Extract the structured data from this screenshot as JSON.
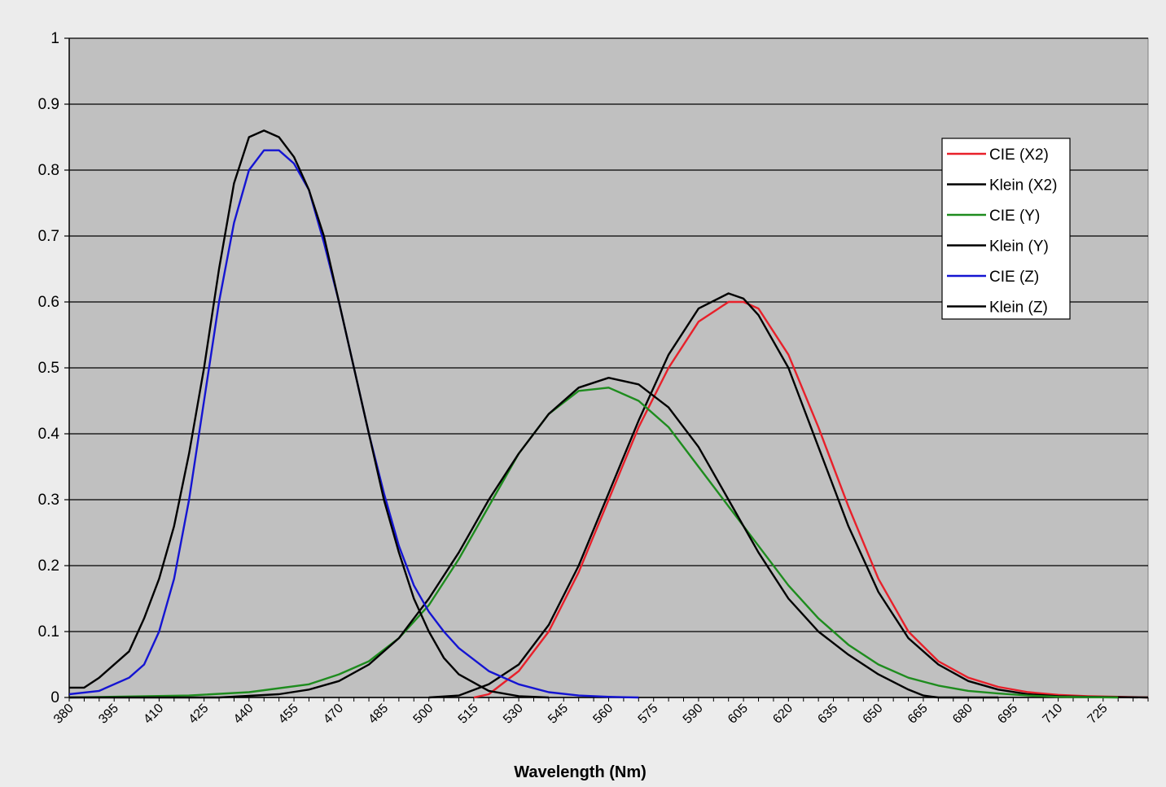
{
  "chart_data": {
    "type": "line",
    "title": "",
    "xlabel": "Wavelength (Nm)",
    "ylabel": "",
    "xlim": [
      380,
      740
    ],
    "ylim": [
      0,
      1
    ],
    "grid": "horizontal",
    "legend_position": "top-right",
    "plot_background": "#c0c0c0",
    "x_ticks": [
      "380",
      "395",
      "410",
      "425",
      "440",
      "455",
      "470",
      "485",
      "500",
      "515",
      "530",
      "545",
      "560",
      "575",
      "590",
      "605",
      "620",
      "635",
      "650",
      "665",
      "680",
      "695",
      "710",
      "725"
    ],
    "y_ticks": [
      "0",
      "0.1",
      "0.2",
      "0.3",
      "0.4",
      "0.5",
      "0.6",
      "0.7",
      "0.8",
      "0.9",
      "1"
    ],
    "series": [
      {
        "name": "CIE (X2)",
        "color": "#e8202a",
        "x": [
          515,
          520,
          530,
          540,
          550,
          560,
          570,
          580,
          590,
          600,
          605,
          610,
          620,
          630,
          640,
          650,
          660,
          670,
          680,
          690,
          700,
          710,
          720,
          730,
          740
        ],
        "y": [
          0,
          0.005,
          0.04,
          0.1,
          0.19,
          0.3,
          0.41,
          0.5,
          0.57,
          0.6,
          0.6,
          0.59,
          0.52,
          0.41,
          0.29,
          0.18,
          0.1,
          0.055,
          0.03,
          0.016,
          0.008,
          0.004,
          0.002,
          0.001,
          0
        ]
      },
      {
        "name": "Klein (X2)",
        "color": "#000000",
        "x": [
          500,
          510,
          520,
          530,
          540,
          550,
          560,
          570,
          580,
          590,
          600,
          605,
          610,
          620,
          630,
          640,
          650,
          660,
          670,
          680,
          690,
          700,
          710,
          720,
          740
        ],
        "y": [
          0,
          0.003,
          0.02,
          0.05,
          0.11,
          0.2,
          0.31,
          0.42,
          0.52,
          0.59,
          0.613,
          0.605,
          0.58,
          0.5,
          0.38,
          0.26,
          0.16,
          0.09,
          0.05,
          0.025,
          0.012,
          0.005,
          0.002,
          0.001,
          0
        ]
      },
      {
        "name": "CIE (Y)",
        "color": "#1e8c1e",
        "x": [
          380,
          420,
          440,
          460,
          470,
          480,
          490,
          500,
          510,
          520,
          530,
          540,
          550,
          560,
          570,
          580,
          590,
          600,
          610,
          620,
          630,
          640,
          650,
          660,
          670,
          680,
          690,
          700,
          710,
          730
        ],
        "y": [
          0,
          0.003,
          0.008,
          0.02,
          0.035,
          0.055,
          0.09,
          0.14,
          0.21,
          0.29,
          0.37,
          0.43,
          0.465,
          0.47,
          0.45,
          0.41,
          0.35,
          0.29,
          0.23,
          0.17,
          0.12,
          0.08,
          0.05,
          0.03,
          0.018,
          0.01,
          0.006,
          0.003,
          0.001,
          0
        ]
      },
      {
        "name": "Klein (Y)",
        "color": "#000000",
        "x": [
          380,
          430,
          450,
          460,
          470,
          480,
          490,
          500,
          510,
          520,
          530,
          540,
          550,
          560,
          570,
          580,
          590,
          600,
          610,
          620,
          630,
          640,
          650,
          660,
          665,
          670,
          690
        ],
        "y": [
          0,
          0,
          0.005,
          0.012,
          0.025,
          0.05,
          0.09,
          0.15,
          0.22,
          0.3,
          0.37,
          0.43,
          0.47,
          0.485,
          0.475,
          0.44,
          0.38,
          0.3,
          0.22,
          0.15,
          0.1,
          0.065,
          0.035,
          0.012,
          0.003,
          0,
          0
        ]
      },
      {
        "name": "CIE (Z)",
        "color": "#1414d2",
        "x": [
          380,
          390,
          400,
          405,
          410,
          415,
          420,
          425,
          430,
          435,
          440,
          445,
          450,
          455,
          460,
          465,
          470,
          475,
          480,
          485,
          490,
          495,
          500,
          505,
          510,
          520,
          530,
          540,
          550,
          560,
          570
        ],
        "y": [
          0.005,
          0.01,
          0.03,
          0.05,
          0.1,
          0.18,
          0.3,
          0.45,
          0.6,
          0.72,
          0.8,
          0.83,
          0.83,
          0.81,
          0.77,
          0.69,
          0.6,
          0.5,
          0.4,
          0.31,
          0.23,
          0.17,
          0.13,
          0.1,
          0.075,
          0.04,
          0.02,
          0.008,
          0.003,
          0.001,
          0
        ]
      },
      {
        "name": "Klein (Z)",
        "color": "#000000",
        "x": [
          380,
          385,
          390,
          400,
          405,
          410,
          415,
          420,
          425,
          430,
          435,
          440,
          445,
          450,
          455,
          460,
          465,
          470,
          475,
          480,
          485,
          490,
          495,
          500,
          505,
          510,
          520,
          530,
          540
        ],
        "y": [
          0.015,
          0.015,
          0.03,
          0.07,
          0.12,
          0.18,
          0.26,
          0.37,
          0.5,
          0.65,
          0.78,
          0.85,
          0.86,
          0.85,
          0.82,
          0.77,
          0.7,
          0.6,
          0.5,
          0.4,
          0.3,
          0.22,
          0.15,
          0.1,
          0.06,
          0.035,
          0.01,
          0.002,
          0
        ]
      }
    ]
  }
}
